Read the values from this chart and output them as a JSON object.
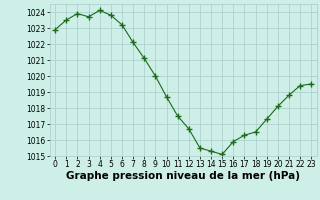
{
  "x": [
    0,
    1,
    2,
    3,
    4,
    5,
    6,
    7,
    8,
    9,
    10,
    11,
    12,
    13,
    14,
    15,
    16,
    17,
    18,
    19,
    20,
    21,
    22,
    23
  ],
  "y": [
    1022.9,
    1023.5,
    1023.9,
    1023.7,
    1024.1,
    1023.8,
    1023.2,
    1022.1,
    1021.1,
    1020.0,
    1018.7,
    1017.5,
    1016.7,
    1015.5,
    1015.3,
    1015.1,
    1015.9,
    1016.3,
    1016.5,
    1017.3,
    1018.1,
    1018.8,
    1019.4,
    1019.5
  ],
  "line_color": "#1a6b1a",
  "marker": "+",
  "background_color": "#ceeee8",
  "grid_color": "#aaccc8",
  "xlabel": "Graphe pression niveau de la mer (hPa)",
  "ylim": [
    1015,
    1024.5
  ],
  "xlim": [
    -0.5,
    23.5
  ],
  "yticks": [
    1015,
    1016,
    1017,
    1018,
    1019,
    1020,
    1021,
    1022,
    1023,
    1024
  ],
  "xticks": [
    0,
    1,
    2,
    3,
    4,
    5,
    6,
    7,
    8,
    9,
    10,
    11,
    12,
    13,
    14,
    15,
    16,
    17,
    18,
    19,
    20,
    21,
    22,
    23
  ],
  "tick_labelsize": 5.5,
  "xlabel_fontsize": 7.5,
  "xlabel_fontweight": "bold"
}
